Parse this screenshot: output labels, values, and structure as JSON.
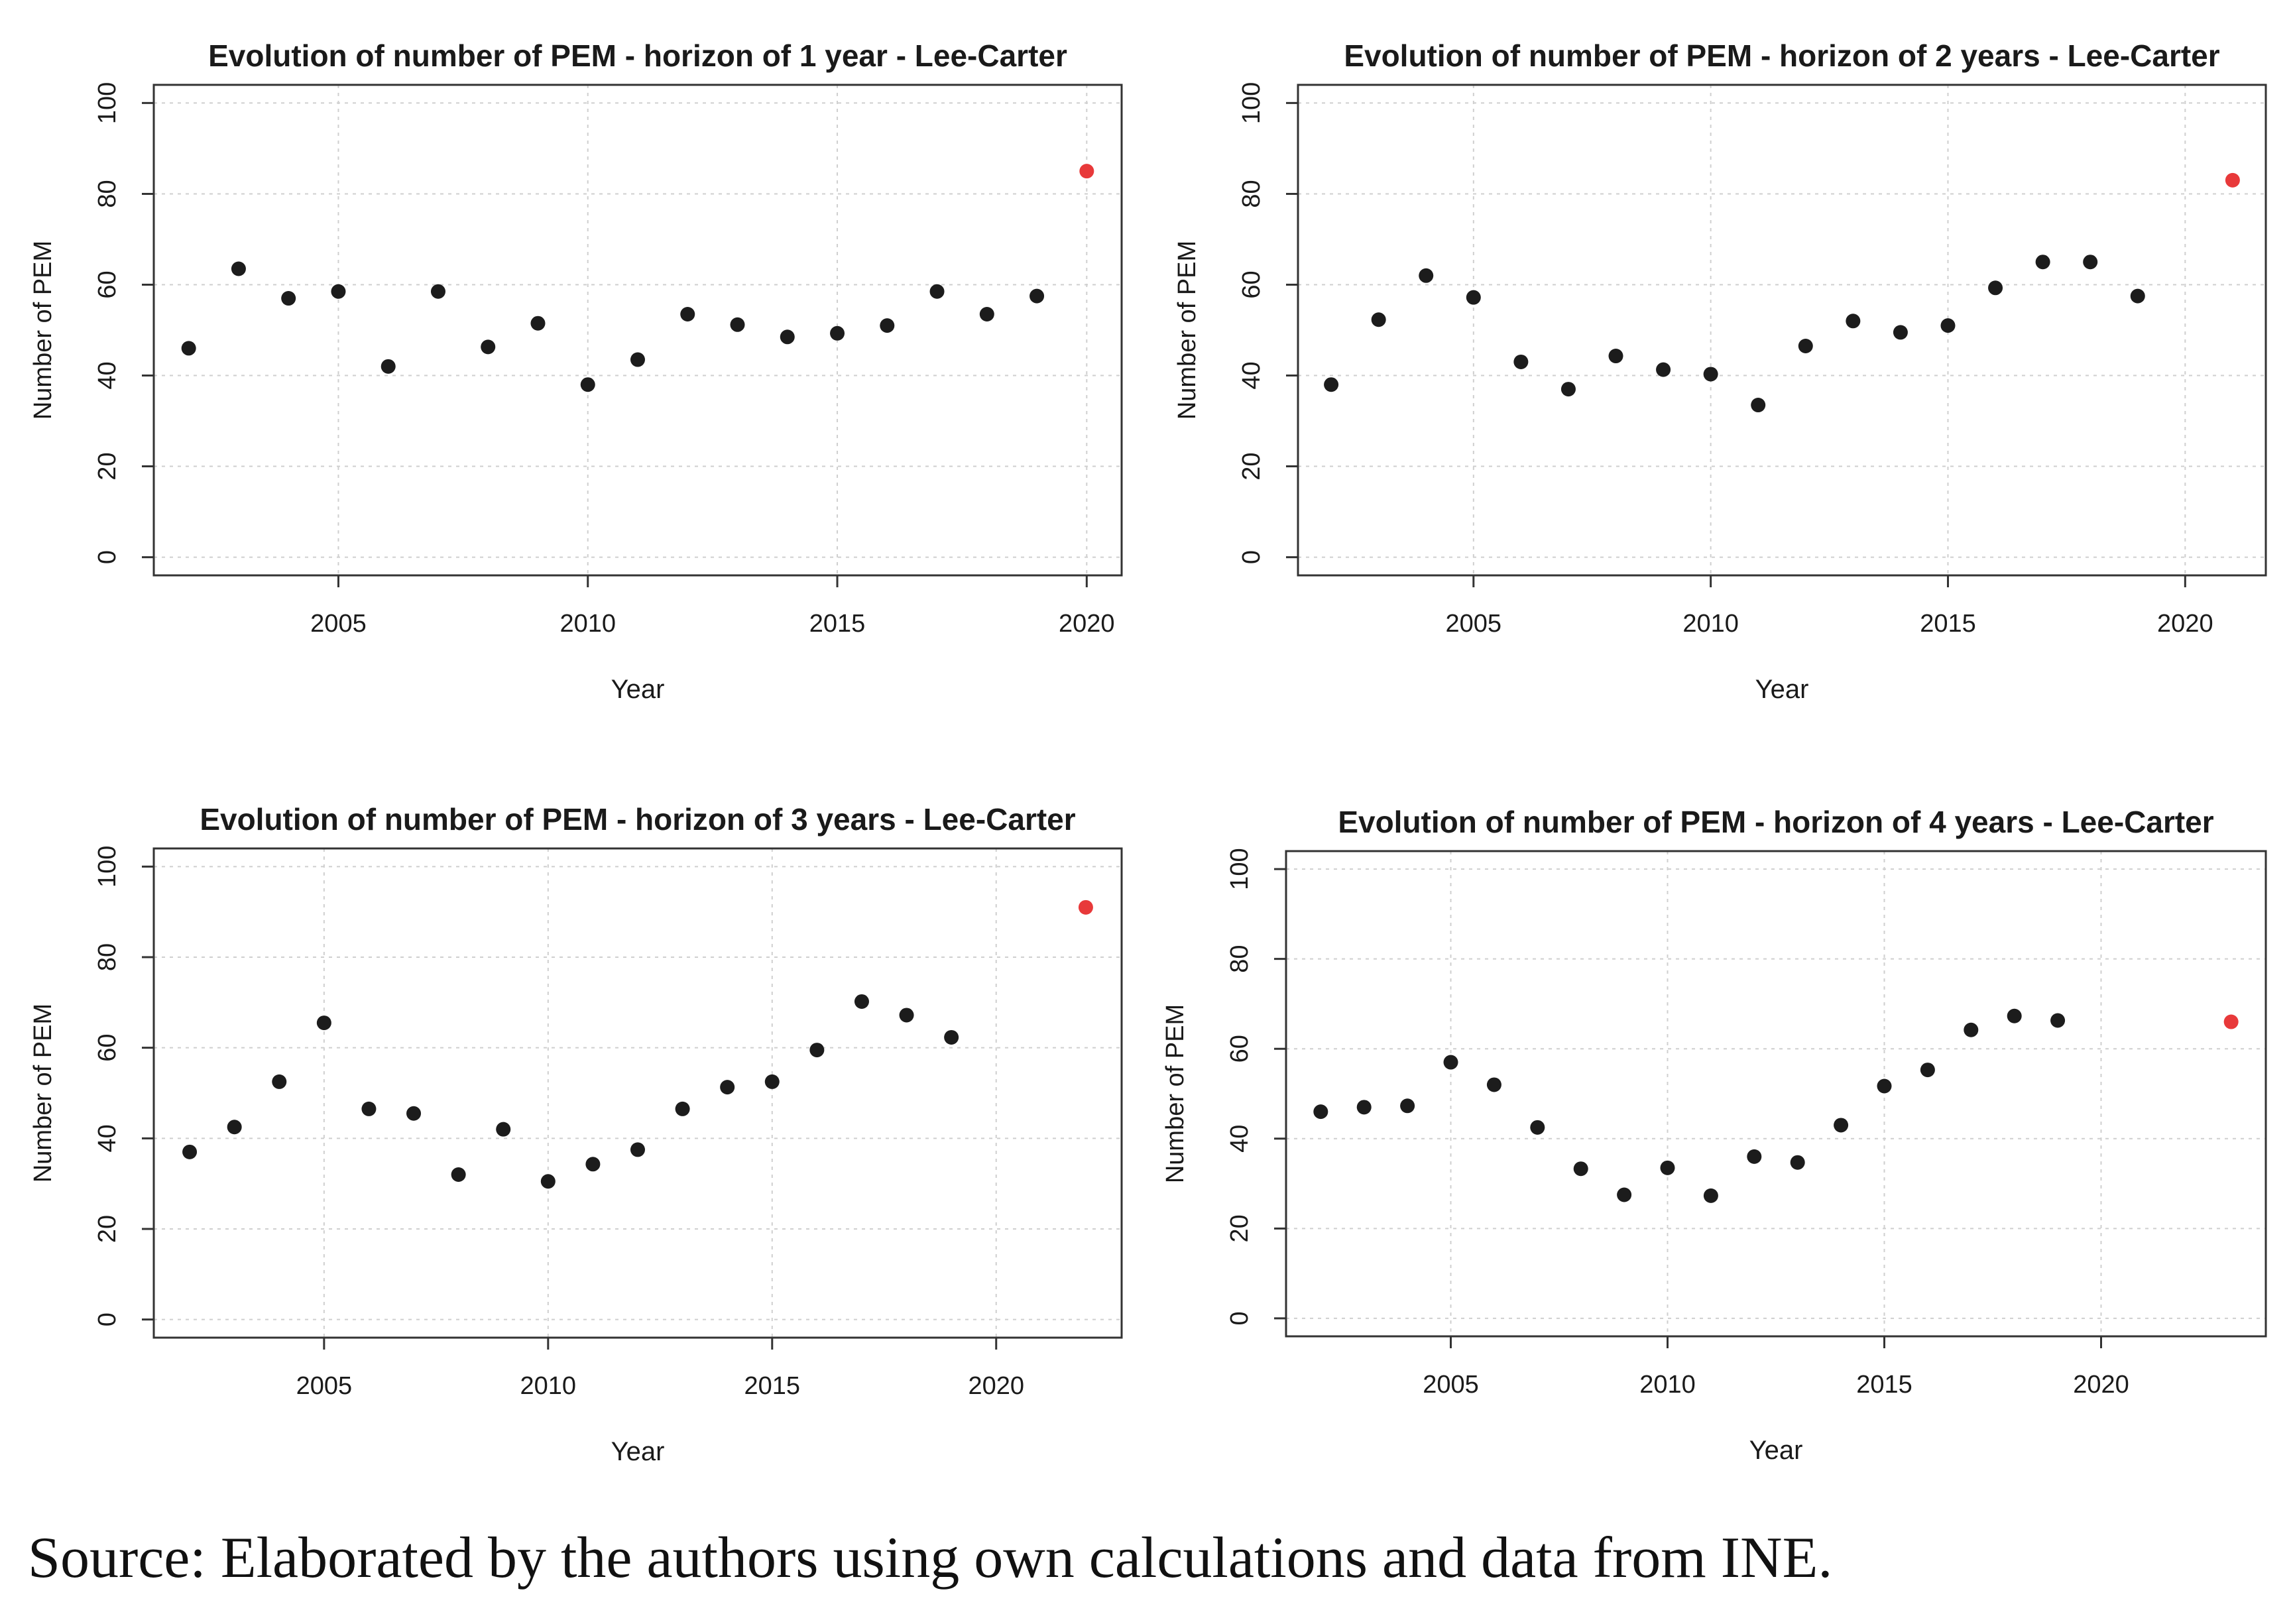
{
  "colors": {
    "point": "#1c1c1c",
    "highlight": "#e8393a",
    "grid": "#cfcfcf",
    "frame": "#333333"
  },
  "source": "Source: Elaborated by the authors using own calculations and data from INE.",
  "chart_data": [
    {
      "type": "scatter",
      "title": "Evolution of number of PEM - horizon of 1 year - Lee-Carter",
      "xlabel": "Year",
      "ylabel": "Number of PEM",
      "xlim": [
        2001.3,
        2020.7
      ],
      "ylim": [
        -4,
        104
      ],
      "xticks": [
        2005,
        2010,
        2015,
        2020
      ],
      "yticks": [
        0,
        20,
        40,
        60,
        80,
        100
      ],
      "grid": true,
      "x": [
        2002,
        2003,
        2004,
        2005,
        2006,
        2007,
        2008,
        2009,
        2010,
        2011,
        2012,
        2013,
        2014,
        2015,
        2016,
        2017,
        2018,
        2019
      ],
      "y": [
        46,
        63.5,
        57,
        58.5,
        42,
        58.5,
        46.3,
        51.5,
        38,
        43.5,
        53.5,
        51.2,
        48.5,
        49.3,
        51,
        58.5,
        53.5,
        57.5
      ],
      "highlight": {
        "x": 2020,
        "y": 85
      }
    },
    {
      "type": "scatter",
      "title": "Evolution of number of PEM - horizon of 2 years - Lee-Carter",
      "xlabel": "Year",
      "ylabel": "Number of PEM",
      "xlim": [
        2001.3,
        2021.7
      ],
      "ylim": [
        -4,
        104
      ],
      "xticks": [
        2005,
        2010,
        2015,
        2020
      ],
      "yticks": [
        0,
        20,
        40,
        60,
        80,
        100
      ],
      "grid": true,
      "x": [
        2002,
        2003,
        2004,
        2005,
        2006,
        2007,
        2008,
        2009,
        2010,
        2011,
        2012,
        2013,
        2014,
        2015,
        2016,
        2017,
        2018,
        2019
      ],
      "y": [
        38,
        52.3,
        62,
        57.2,
        43,
        37,
        44.3,
        41.3,
        40.3,
        33.5,
        46.5,
        52,
        49.5,
        51,
        59.3,
        65,
        65,
        57.5
      ],
      "highlight": {
        "x": 2021,
        "y": 83
      }
    },
    {
      "type": "scatter",
      "title": "Evolution of number of PEM - horizon of 3 years - Lee-Carter",
      "xlabel": "Year",
      "ylabel": "Number of PEM",
      "xlim": [
        2001.2,
        2022.8
      ],
      "ylim": [
        -4,
        104
      ],
      "xticks": [
        2005,
        2010,
        2015,
        2020
      ],
      "yticks": [
        0,
        20,
        40,
        60,
        80,
        100
      ],
      "grid": true,
      "x": [
        2002,
        2003,
        2004,
        2005,
        2006,
        2007,
        2008,
        2009,
        2010,
        2011,
        2012,
        2013,
        2014,
        2015,
        2016,
        2017,
        2018,
        2019
      ],
      "y": [
        37,
        42.5,
        52.5,
        65.5,
        46.5,
        45.5,
        32,
        42,
        30.5,
        34.3,
        37.5,
        46.5,
        51.3,
        52.5,
        59.5,
        70.2,
        67.2,
        62.3
      ],
      "highlight": {
        "x": 2022,
        "y": 91
      }
    },
    {
      "type": "scatter",
      "title": "Evolution of number of PEM - horizon of 4 years - Lee-Carter",
      "xlabel": "Year",
      "ylabel": "Number of PEM",
      "xlim": [
        2001.2,
        2023.8
      ],
      "ylim": [
        -4,
        104
      ],
      "xticks": [
        2005,
        2010,
        2015,
        2020
      ],
      "yticks": [
        0,
        20,
        40,
        60,
        80,
        100
      ],
      "grid": true,
      "x": [
        2002,
        2003,
        2004,
        2005,
        2006,
        2007,
        2008,
        2009,
        2010,
        2011,
        2012,
        2013,
        2014,
        2015,
        2016,
        2017,
        2018,
        2019
      ],
      "y": [
        46,
        47,
        47.3,
        57,
        52,
        42.5,
        33.3,
        27.5,
        33.5,
        27.3,
        36,
        34.7,
        43,
        51.7,
        55.3,
        64.2,
        67.3,
        66.3
      ],
      "highlight": {
        "x": 2023,
        "y": 66
      }
    }
  ]
}
